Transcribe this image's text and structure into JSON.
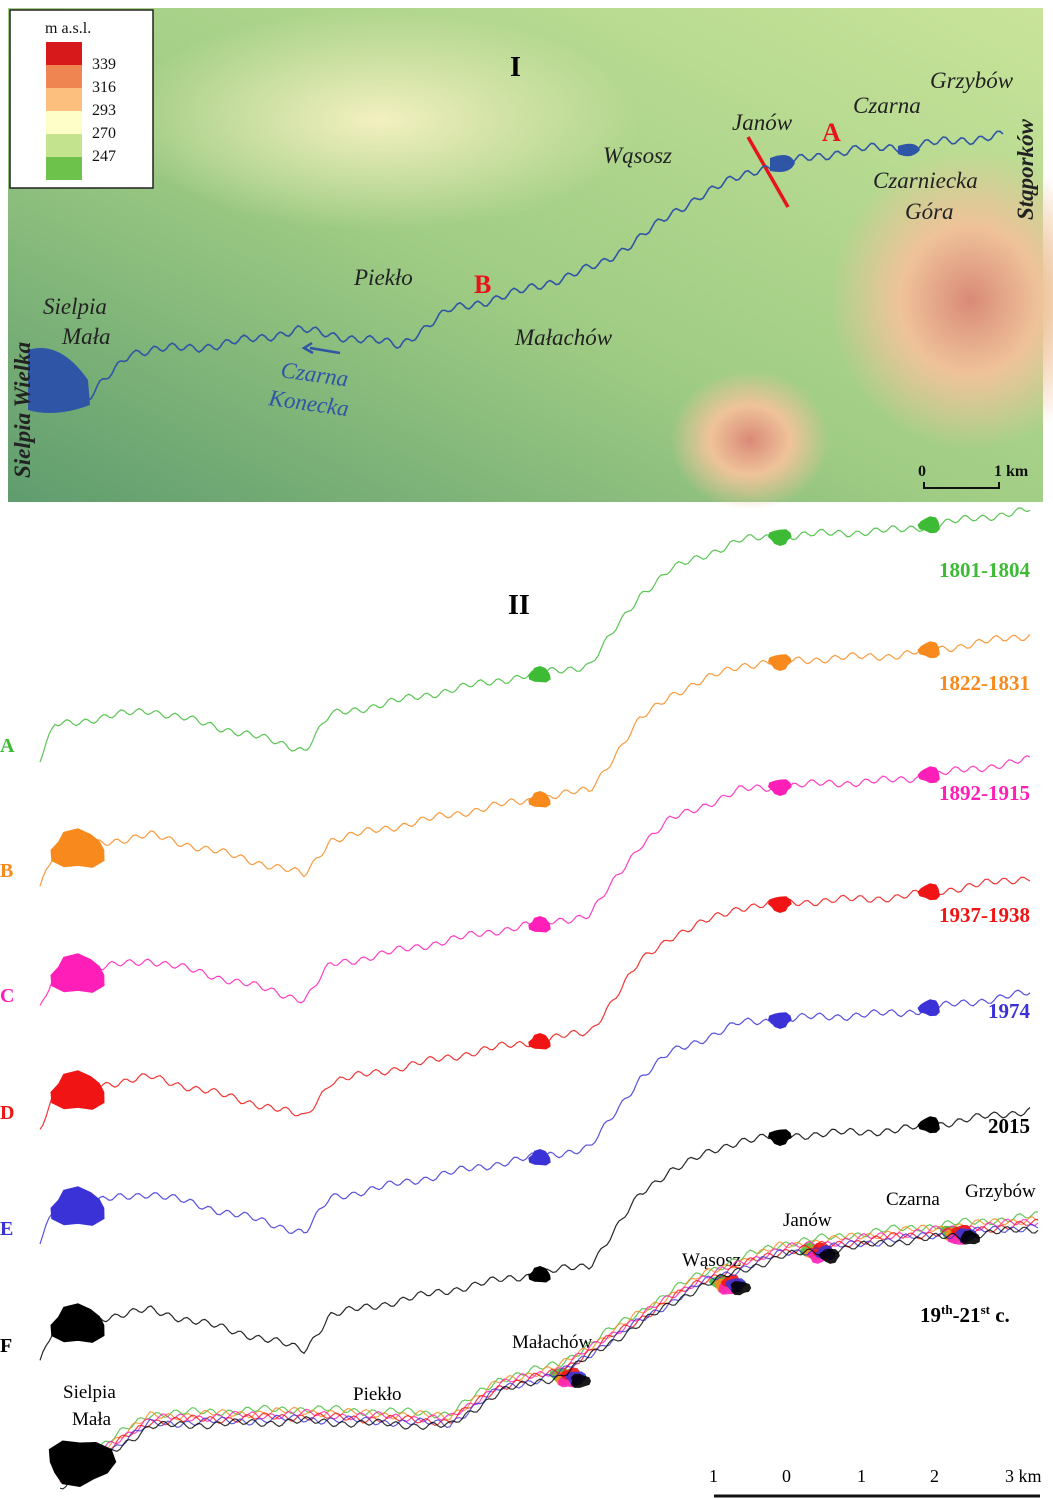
{
  "panel_1": {
    "label": "I",
    "legend": {
      "title": "m a.s.l.",
      "values": [
        339,
        316,
        293,
        270,
        247
      ],
      "colors": [
        "#d7191c",
        "#ef8550",
        "#fdbf7e",
        "#fefec8",
        "#c3e38f",
        "#6cc24a"
      ]
    },
    "places": {
      "grzybow": "Grzybów",
      "czarna": "Czarna",
      "janow": "Janów",
      "wasosz": "Wąsosz",
      "czarniecka": "Czarniecka",
      "gora": "Góra",
      "staporkow": "Stąporków",
      "pieklo": "Piekło",
      "sielpia": "Sielpia",
      "mala": "Mała",
      "malachow": "Małachów",
      "river_1": "Czarna",
      "river_2": "Konecka",
      "sielpia_wielka": "Sielpia Wielka"
    },
    "cross_sections": [
      "A",
      "B"
    ],
    "scale": [
      "0",
      "1 km"
    ]
  },
  "panel_2": {
    "label": "II",
    "series": [
      {
        "name": "A",
        "period": "1801-1804",
        "color": "#3dbb35"
      },
      {
        "name": "B",
        "period": "1822-1831",
        "color": "#f7891d"
      },
      {
        "name": "C",
        "period": "1892-1915",
        "color": "#ff1fb8"
      },
      {
        "name": "D",
        "period": "1937-1938",
        "color": "#f01414"
      },
      {
        "name": "E",
        "period": "1974",
        "color": "#3a32d6"
      },
      {
        "name": "F",
        "period": "2015",
        "color": "#000000"
      }
    ],
    "summary": [
      "19",
      "th",
      "-21",
      "st",
      " c."
    ],
    "places": {
      "janow": "Janów",
      "czarna": "Czarna",
      "grzybow": "Grzybów",
      "wasosz": "Wąsosz",
      "malachow": "Małachów",
      "pieklo": "Piekło",
      "sielpia": "Sielpia",
      "mala": "Mała"
    },
    "scale": [
      "1",
      "0",
      "1",
      "2",
      "3 km"
    ]
  }
}
